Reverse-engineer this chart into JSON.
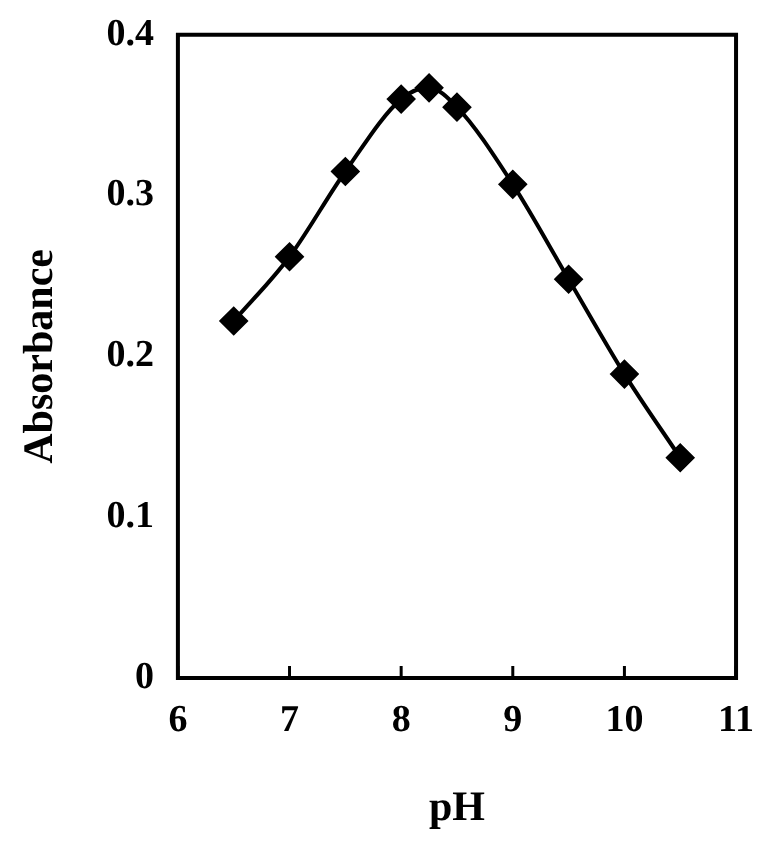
{
  "chart_data": {
    "type": "line",
    "xlabel": "pH",
    "ylabel": "Absorbance",
    "x": [
      6.5,
      7,
      7.5,
      8,
      8.25,
      8.5,
      9,
      9.5,
      10,
      10.5
    ],
    "series": [
      {
        "color": "#000000",
        "values": [
          0.222,
          0.262,
          0.315,
          0.36,
          0.367,
          0.355,
          0.307,
          0.248,
          0.189,
          0.137
        ]
      }
    ],
    "xlim": [
      6,
      11
    ],
    "xticks": [
      6,
      7,
      8,
      9,
      10,
      11
    ],
    "ylim": [
      0,
      0.4
    ],
    "yticks": [
      0,
      0.1,
      0.2,
      0.3,
      0.4
    ],
    "grid": false,
    "legend": false,
    "marker": "diamond",
    "line_style": "solid"
  }
}
